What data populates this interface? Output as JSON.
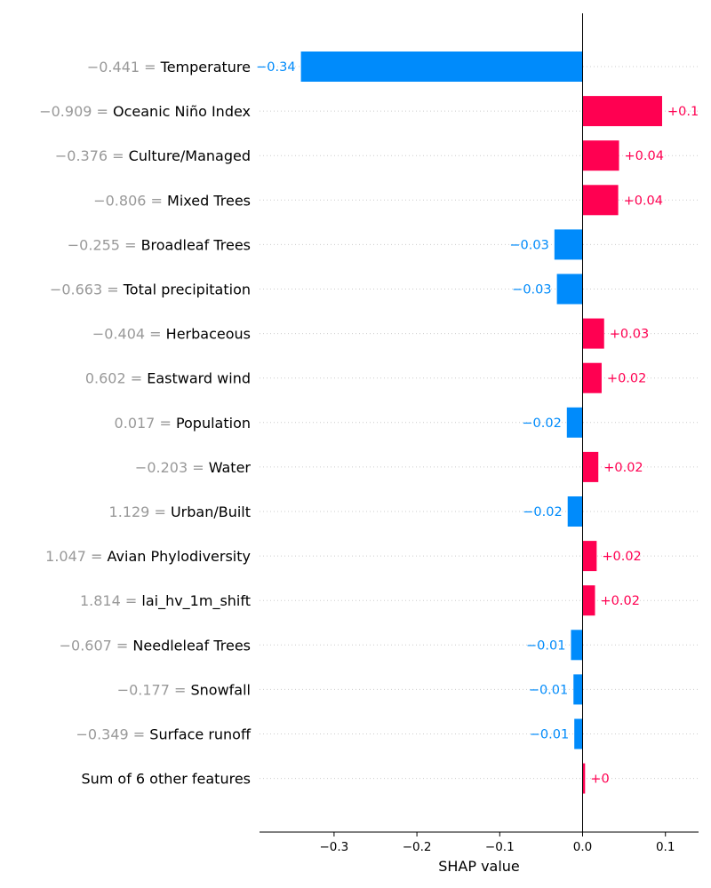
{
  "colors": {
    "positive": "#ff0051",
    "negative": "#008bfb",
    "value_text": "#999999"
  },
  "chart_data": {
    "type": "bar",
    "orientation": "horizontal",
    "xlabel": "SHAP value",
    "xlim": [
      -0.39,
      0.14
    ],
    "xticks": [
      -0.3,
      -0.2,
      -0.1,
      0.0,
      0.1
    ],
    "xtick_labels": [
      "−0.3",
      "−0.2",
      "−0.1",
      "0.0",
      "0.1"
    ],
    "grid": "horizontal dotted",
    "features": [
      {
        "value": "−0.441",
        "name": "Temperature",
        "shap": -0.34,
        "label": "−0.34"
      },
      {
        "value": "−0.909",
        "name": "Oceanic Niño Index",
        "shap": 0.096,
        "label": "+0.1"
      },
      {
        "value": "−0.376",
        "name": "Culture/Managed",
        "shap": 0.044,
        "label": "+0.04"
      },
      {
        "value": "−0.806",
        "name": "Mixed Trees",
        "shap": 0.043,
        "label": "+0.04"
      },
      {
        "value": "−0.255",
        "name": "Broadleaf Trees",
        "shap": -0.034,
        "label": "−0.03"
      },
      {
        "value": "−0.663",
        "name": "Total precipitation",
        "shap": -0.031,
        "label": "−0.03"
      },
      {
        "value": "−0.404",
        "name": "Herbaceous",
        "shap": 0.026,
        "label": "+0.03"
      },
      {
        "value": "0.602",
        "name": "Eastward wind",
        "shap": 0.023,
        "label": "+0.02"
      },
      {
        "value": "0.017",
        "name": "Population",
        "shap": -0.019,
        "label": "−0.02"
      },
      {
        "value": "−0.203",
        "name": "Water",
        "shap": 0.019,
        "label": "+0.02"
      },
      {
        "value": "1.129",
        "name": "Urban/Built",
        "shap": -0.018,
        "label": "−0.02"
      },
      {
        "value": "1.047",
        "name": "Avian Phylodiversity",
        "shap": 0.017,
        "label": "+0.02"
      },
      {
        "value": "1.814",
        "name": "lai_hv_1m_shift",
        "shap": 0.015,
        "label": "+0.02"
      },
      {
        "value": "−0.607",
        "name": "Needleleaf Trees",
        "shap": -0.014,
        "label": "−0.01"
      },
      {
        "value": "−0.177",
        "name": "Snowfall",
        "shap": -0.011,
        "label": "−0.01"
      },
      {
        "value": "−0.349",
        "name": "Surface runoff",
        "shap": -0.01,
        "label": "−0.01"
      },
      {
        "value": "",
        "name": "Sum of 6 other features",
        "shap": 0.003,
        "label": "+0"
      }
    ]
  }
}
